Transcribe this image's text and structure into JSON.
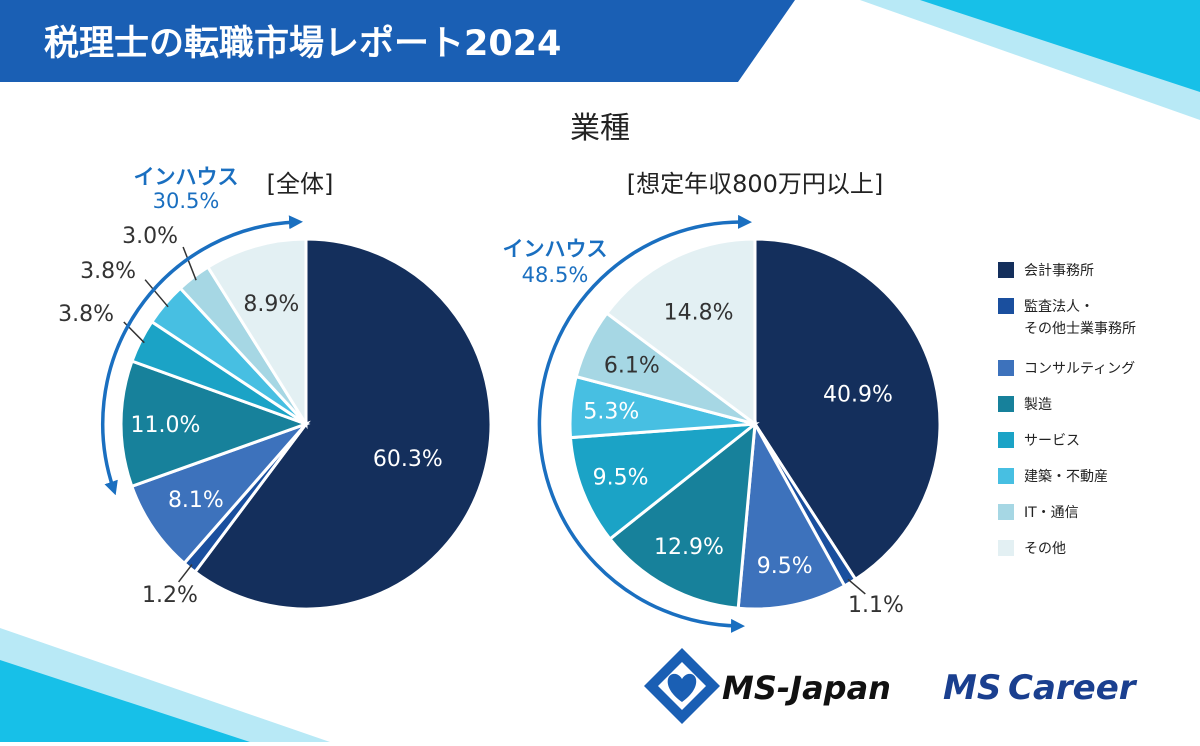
{
  "header": {
    "title": "税理士の転職市場レポート2024"
  },
  "subtitle": "業種",
  "chart_data": [
    {
      "type": "pie",
      "title": "[全体]",
      "categories": [
        "会計事務所",
        "監査法人・その他士業事務所",
        "コンサルティング",
        "製造",
        "サービス",
        "建築・不動産",
        "IT・通信",
        "その他"
      ],
      "values": [
        60.3,
        1.2,
        8.1,
        11.0,
        3.8,
        3.8,
        3.0,
        8.9
      ],
      "labels": [
        "60.3%",
        "1.2%",
        "8.1%",
        "11.0%",
        "3.8%",
        "3.8%",
        "3.0%",
        "8.9%"
      ],
      "inhouse": {
        "label": "インハウス",
        "value": "30.5%"
      }
    },
    {
      "type": "pie",
      "title": "[想定年収800万円以上]",
      "categories": [
        "会計事務所",
        "監査法人・その他士業事務所",
        "コンサルティング",
        "製造",
        "サービス",
        "建築・不動産",
        "IT・通信",
        "その他"
      ],
      "values": [
        40.9,
        1.1,
        9.5,
        12.9,
        9.5,
        5.3,
        6.1,
        14.8
      ],
      "labels": [
        "40.9%",
        "1.1%",
        "9.5%",
        "12.9%",
        "9.5%",
        "5.3%",
        "6.1%",
        "14.8%"
      ],
      "inhouse": {
        "label": "インハウス",
        "value": "48.5%"
      }
    }
  ],
  "legend": [
    {
      "name": "legend-accounting",
      "lines": [
        "会計事務所"
      ],
      "color": "#142f5c"
    },
    {
      "name": "legend-audit",
      "lines": [
        "監査法人・",
        "その他士業事務所"
      ],
      "color": "#1a4f9e"
    },
    {
      "name": "legend-consulting",
      "lines": [
        "コンサルティング"
      ],
      "color": "#3d72bc"
    },
    {
      "name": "legend-manufacturing",
      "lines": [
        "製造"
      ],
      "color": "#17819b"
    },
    {
      "name": "legend-service",
      "lines": [
        "サービス"
      ],
      "color": "#1ba3c6"
    },
    {
      "name": "legend-construction",
      "lines": [
        "建築・不動産"
      ],
      "color": "#47bfe2"
    },
    {
      "name": "legend-it",
      "lines": [
        "IT・通信"
      ],
      "color": "#a6d7e4"
    },
    {
      "name": "legend-other",
      "lines": [
        "その他"
      ],
      "color": "#e3f0f3"
    }
  ],
  "colors": {
    "header_bg": "#1a5fb4",
    "accent_cyan": "#17c0e8",
    "arrow": "#1a6fc0",
    "label_dark": "#333333",
    "label_light": "#ffffff"
  },
  "logos": {
    "ms_japan": "MS-Japan",
    "ms_career_ms": "MS",
    "ms_career_rest": "Career"
  }
}
